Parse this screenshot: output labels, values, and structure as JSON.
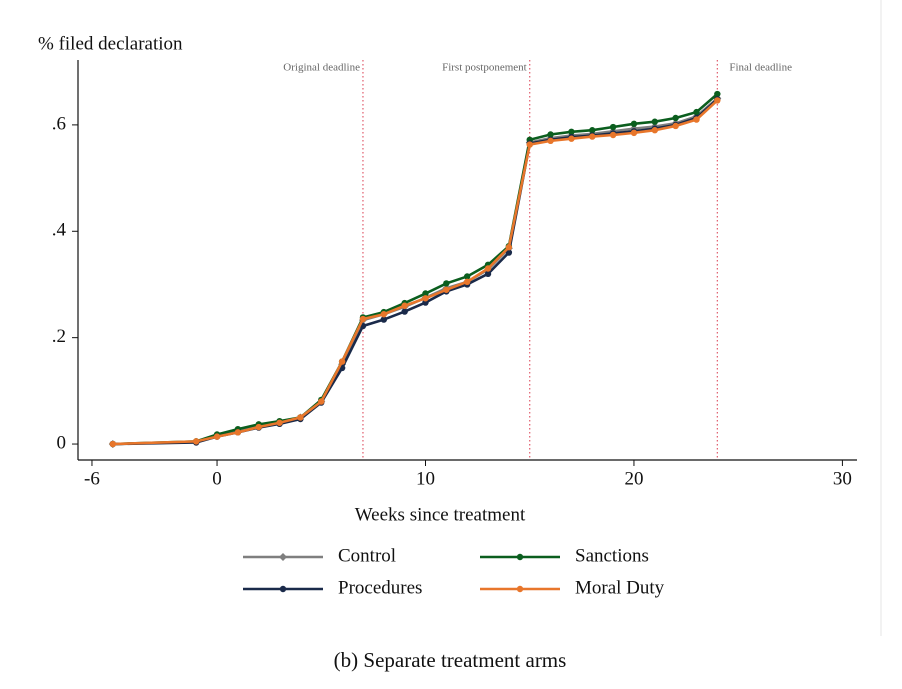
{
  "chart_data": {
    "type": "line",
    "y_label": "% filed declaration",
    "x_label": "Weeks since treatment",
    "caption": "(b) Separate treatment arms",
    "x": [
      -5,
      -1,
      0,
      1,
      2,
      3,
      4,
      5,
      6,
      7,
      8,
      9,
      10,
      11,
      12,
      13,
      14,
      15,
      16,
      17,
      18,
      19,
      20,
      21,
      22,
      23,
      24
    ],
    "series": [
      {
        "name": "Control",
        "color": "#7f7f7f",
        "marker": "diamond",
        "values": [
          0,
          0.004,
          0.015,
          0.024,
          0.033,
          0.041,
          0.05,
          0.08,
          0.15,
          0.233,
          0.244,
          0.258,
          0.275,
          0.293,
          0.305,
          0.328,
          0.368,
          0.567,
          0.575,
          0.58,
          0.583,
          0.588,
          0.593,
          0.597,
          0.603,
          0.616,
          0.65
        ]
      },
      {
        "name": "Sanctions",
        "color": "#0b5e1e",
        "marker": "circle",
        "values": [
          0,
          0.005,
          0.018,
          0.028,
          0.037,
          0.043,
          0.05,
          0.083,
          0.155,
          0.238,
          0.248,
          0.265,
          0.283,
          0.302,
          0.315,
          0.337,
          0.372,
          0.572,
          0.582,
          0.587,
          0.59,
          0.596,
          0.602,
          0.606,
          0.613,
          0.624,
          0.658
        ]
      },
      {
        "name": "Procedures",
        "color": "#1a2a4a",
        "marker": "circle",
        "values": [
          0,
          0.003,
          0.014,
          0.022,
          0.031,
          0.038,
          0.047,
          0.078,
          0.143,
          0.222,
          0.234,
          0.249,
          0.266,
          0.287,
          0.3,
          0.32,
          0.36,
          0.565,
          0.572,
          0.577,
          0.58,
          0.584,
          0.588,
          0.593,
          0.6,
          0.613,
          0.648
        ]
      },
      {
        "name": "Moral Duty",
        "color": "#e8762b",
        "marker": "circle",
        "values": [
          0,
          0.005,
          0.014,
          0.022,
          0.032,
          0.04,
          0.05,
          0.08,
          0.155,
          0.235,
          0.244,
          0.26,
          0.274,
          0.29,
          0.305,
          0.33,
          0.37,
          0.563,
          0.57,
          0.574,
          0.578,
          0.581,
          0.585,
          0.59,
          0.598,
          0.61,
          0.646
        ]
      }
    ],
    "vlines": [
      {
        "x": 7,
        "label": "Original deadline"
      },
      {
        "x": 15,
        "label": "First postponement"
      },
      {
        "x": 24,
        "label": "Final deadline"
      }
    ],
    "vline_color": "#e05a6a",
    "xlim": [
      -6.67,
      30.7
    ],
    "xticks": [
      -6,
      0,
      10,
      20,
      30
    ],
    "ylim": [
      -0.03,
      0.722
    ],
    "yticks": [
      {
        "value": 0,
        "label": "0"
      },
      {
        "value": 0.2,
        "label": ".2"
      },
      {
        "value": 0.4,
        "label": ".4"
      },
      {
        "value": 0.6,
        "label": ".6"
      }
    ]
  }
}
